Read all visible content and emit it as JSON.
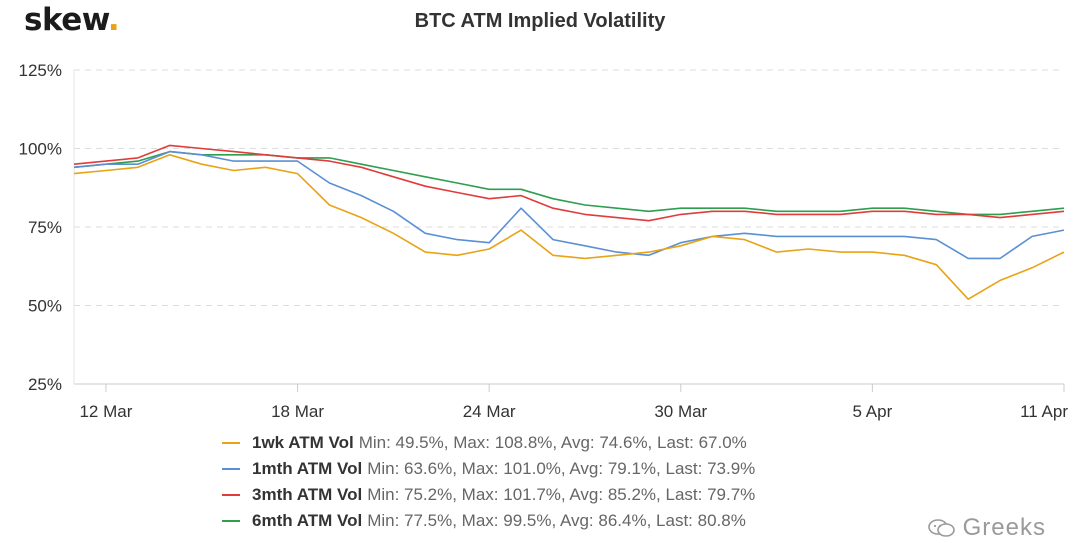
{
  "brand": {
    "name": "skew",
    "dot": "."
  },
  "watermark": "Greeks",
  "chart_data": {
    "type": "line",
    "title": "BTC ATM Implied Volatility",
    "xlabel": "",
    "ylabel": "",
    "ylim": [
      25,
      125
    ],
    "yticks": [
      "125%",
      "100%",
      "75%",
      "50%",
      "25%"
    ],
    "ytick_values": [
      125,
      100,
      75,
      50,
      25
    ],
    "xlim": [
      "2020-03-11",
      "2020-04-11"
    ],
    "xticks": [
      "12 Mar",
      "18 Mar",
      "24 Mar",
      "30 Mar",
      "5 Apr",
      "11 Apr"
    ],
    "xtick_dates": [
      "2020-03-12",
      "2020-03-18",
      "2020-03-24",
      "2020-03-30",
      "2020-04-05",
      "2020-04-11"
    ],
    "grid": "horizontal dashed",
    "legend": "bottom",
    "x": [
      "2020-03-11",
      "2020-03-12",
      "2020-03-13",
      "2020-03-14",
      "2020-03-15",
      "2020-03-16",
      "2020-03-17",
      "2020-03-18",
      "2020-03-19",
      "2020-03-20",
      "2020-03-21",
      "2020-03-22",
      "2020-03-23",
      "2020-03-24",
      "2020-03-25",
      "2020-03-26",
      "2020-03-27",
      "2020-03-28",
      "2020-03-29",
      "2020-03-30",
      "2020-03-31",
      "2020-04-01",
      "2020-04-02",
      "2020-04-03",
      "2020-04-04",
      "2020-04-05",
      "2020-04-06",
      "2020-04-07",
      "2020-04-08",
      "2020-04-09",
      "2020-04-10",
      "2020-04-11"
    ],
    "series": [
      {
        "name": "1wk ATM Vol",
        "stats": "Min: 49.5%, Max: 108.8%, Avg: 74.6%, Last: 67.0%",
        "color": "#e8a317",
        "values": [
          92,
          93,
          94,
          98,
          95,
          93,
          94,
          92,
          82,
          78,
          73,
          67,
          66,
          68,
          74,
          66,
          65,
          66,
          67,
          69,
          72,
          71,
          67,
          68,
          67,
          67,
          66,
          63,
          52,
          58,
          62,
          67
        ]
      },
      {
        "name": "1mth ATM Vol",
        "stats": "Min: 63.6%, Max: 101.0%, Avg: 79.1%, Last: 73.9%",
        "color": "#5b8fd4",
        "values": [
          94,
          95,
          95,
          99,
          98,
          96,
          96,
          96,
          89,
          85,
          80,
          73,
          71,
          70,
          81,
          71,
          69,
          67,
          66,
          70,
          72,
          73,
          72,
          72,
          72,
          72,
          72,
          71,
          65,
          65,
          72,
          74
        ]
      },
      {
        "name": "3mth ATM Vol",
        "stats": "Min: 75.2%, Max: 101.7%, Avg: 85.2%, Last: 79.7%",
        "color": "#e03c3c",
        "values": [
          95,
          96,
          97,
          101,
          100,
          99,
          98,
          97,
          96,
          94,
          91,
          88,
          86,
          84,
          85,
          81,
          79,
          78,
          77,
          79,
          80,
          80,
          79,
          79,
          79,
          80,
          80,
          79,
          79,
          78,
          79,
          80
        ]
      },
      {
        "name": "6mth ATM Vol",
        "stats": "Min: 77.5%, Max: 99.5%, Avg: 86.4%, Last: 80.8%",
        "color": "#2e9e4f",
        "values": [
          94,
          95,
          96,
          99,
          98,
          98,
          98,
          97,
          97,
          95,
          93,
          91,
          89,
          87,
          87,
          84,
          82,
          81,
          80,
          81,
          81,
          81,
          80,
          80,
          80,
          81,
          81,
          80,
          79,
          79,
          80,
          81
        ]
      }
    ]
  }
}
